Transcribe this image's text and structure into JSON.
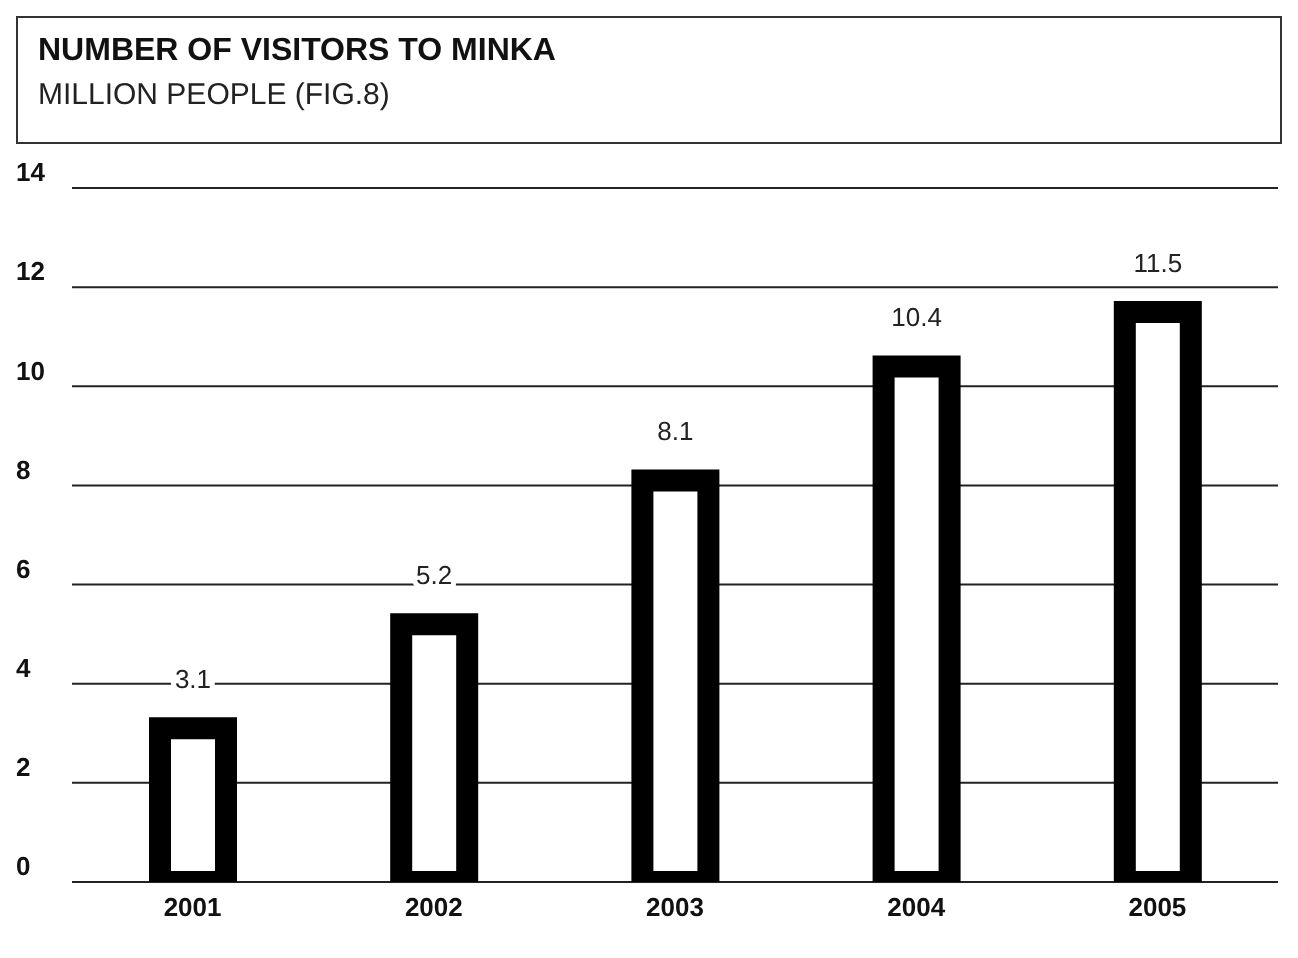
{
  "chart_data": {
    "type": "bar",
    "title": "NUMBER OF VISITORS TO MINKA",
    "subtitle": "MILLION PEOPLE (FIG.8)",
    "categories": [
      "2001",
      "2002",
      "2003",
      "2004",
      "2005"
    ],
    "values": [
      3.1,
      5.2,
      8.1,
      10.4,
      11.5
    ],
    "color": "#000000",
    "ylim": [
      0,
      14
    ],
    "yticks": [
      0,
      2,
      4,
      6,
      8,
      10,
      12,
      14
    ],
    "grid": "y",
    "data_labels": true
  }
}
